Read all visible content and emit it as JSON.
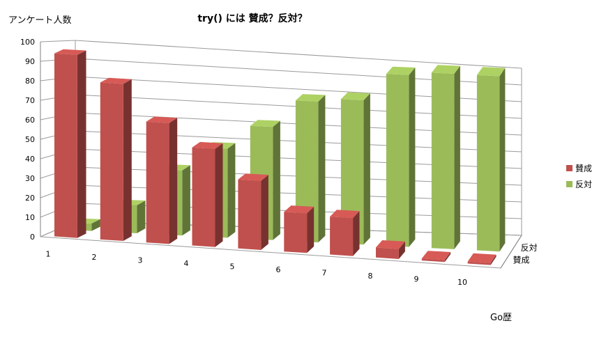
{
  "chart_data": {
    "type": "bar",
    "title": "try() には 賛成？反対？",
    "ylabel": "アンケート人数",
    "xlabel": "Go歴",
    "categories": [
      "1",
      "2",
      "3",
      "4",
      "5",
      "6",
      "7",
      "8",
      "9",
      "10"
    ],
    "y_ticks": [
      "0",
      "10",
      "20",
      "30",
      "40",
      "50",
      "60",
      "70",
      "80",
      "90",
      "100"
    ],
    "ylim": [
      0,
      100
    ],
    "depth_labels": [
      "反対",
      "賛成"
    ],
    "series": [
      {
        "name": "賛成",
        "color": "#c0504d",
        "values": [
          95,
          81,
          62,
          50,
          35,
          20,
          19,
          5,
          1,
          1
        ]
      },
      {
        "name": "反対",
        "color": "#9bbb59",
        "values": [
          4,
          15,
          35,
          48,
          61,
          76,
          78,
          93,
          95,
          95
        ]
      }
    ],
    "legend_position": "right",
    "grid": true
  }
}
